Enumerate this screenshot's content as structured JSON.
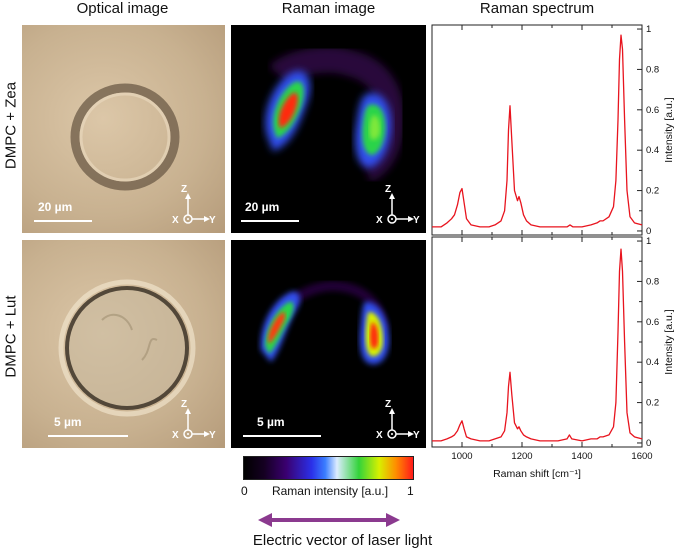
{
  "headers": {
    "optical": "Optical image",
    "raman": "Raman image",
    "spectrum": "Raman spectrum"
  },
  "rows": [
    {
      "label": "DMPC + Zea",
      "optical_scale": "20 µm",
      "raman_scale": "20 µm"
    },
    {
      "label": "DMPC + Lut",
      "optical_scale": "5 µm",
      "raman_scale": "5 µm"
    }
  ],
  "axis_glyphs": {
    "z": "Z",
    "x": "X",
    "y": "Y"
  },
  "colorbar": {
    "min": "0",
    "max": "1",
    "label": "Raman intensity [a.u.]"
  },
  "footer": {
    "label": "Electric vector of laser light"
  },
  "colors": {
    "spectrum_line": "#e8141e",
    "arrow": "#8b3a8f"
  },
  "chart_data": [
    {
      "type": "line",
      "title": "Raman spectrum",
      "xlabel": "Raman shift [cm⁻¹]",
      "ylabel": "Intensity [a.u.]",
      "xlim": [
        900,
        1600
      ],
      "ylim": [
        -0.02,
        1.02
      ],
      "x_ticks": [
        "1000",
        "1200",
        "1400",
        "1600"
      ],
      "y_ticks": [
        "0",
        "0.2",
        "0.4",
        "0.6",
        "0.8",
        "1"
      ],
      "series": [
        {
          "x": [
            900,
            930,
            950,
            965,
            975,
            985,
            993,
            1000,
            1007,
            1015,
            1030,
            1060,
            1090,
            1110,
            1130,
            1142,
            1150,
            1155,
            1160,
            1166,
            1175,
            1185,
            1190,
            1196,
            1205,
            1215,
            1230,
            1260,
            1290,
            1320,
            1350,
            1360,
            1370,
            1400,
            1430,
            1450,
            1460,
            1470,
            1490,
            1505,
            1513,
            1520,
            1525,
            1530,
            1535,
            1542,
            1550,
            1560,
            1575,
            1600
          ],
          "y": [
            0.02,
            0.02,
            0.04,
            0.06,
            0.08,
            0.13,
            0.19,
            0.21,
            0.14,
            0.06,
            0.03,
            0.02,
            0.02,
            0.03,
            0.05,
            0.1,
            0.25,
            0.5,
            0.62,
            0.45,
            0.2,
            0.15,
            0.17,
            0.14,
            0.08,
            0.05,
            0.03,
            0.02,
            0.02,
            0.02,
            0.02,
            0.03,
            0.02,
            0.02,
            0.03,
            0.04,
            0.05,
            0.05,
            0.07,
            0.12,
            0.25,
            0.55,
            0.85,
            0.97,
            0.9,
            0.55,
            0.2,
            0.07,
            0.04,
            0.03
          ]
        }
      ]
    },
    {
      "type": "line",
      "xlabel": "Raman shift [cm⁻¹]",
      "ylabel": "Intensity [a.u.]",
      "xlim": [
        900,
        1600
      ],
      "ylim": [
        -0.02,
        1.02
      ],
      "x_ticks": [
        "1000",
        "1200",
        "1400",
        "1600"
      ],
      "y_ticks": [
        "0",
        "0.2",
        "0.4",
        "0.6",
        "0.8",
        "1"
      ],
      "series": [
        {
          "x": [
            900,
            930,
            950,
            965,
            975,
            985,
            993,
            1000,
            1007,
            1015,
            1030,
            1060,
            1090,
            1110,
            1130,
            1142,
            1150,
            1155,
            1160,
            1166,
            1175,
            1185,
            1190,
            1196,
            1205,
            1215,
            1230,
            1260,
            1290,
            1320,
            1350,
            1358,
            1366,
            1400,
            1430,
            1450,
            1460,
            1470,
            1490,
            1505,
            1513,
            1520,
            1525,
            1530,
            1535,
            1542,
            1550,
            1560,
            1575,
            1600
          ],
          "y": [
            0.01,
            0.01,
            0.02,
            0.03,
            0.04,
            0.06,
            0.09,
            0.11,
            0.07,
            0.03,
            0.02,
            0.01,
            0.01,
            0.02,
            0.03,
            0.06,
            0.15,
            0.28,
            0.35,
            0.24,
            0.1,
            0.07,
            0.08,
            0.06,
            0.04,
            0.03,
            0.02,
            0.01,
            0.01,
            0.01,
            0.02,
            0.04,
            0.02,
            0.01,
            0.02,
            0.02,
            0.03,
            0.03,
            0.04,
            0.08,
            0.2,
            0.55,
            0.85,
            0.96,
            0.85,
            0.5,
            0.15,
            0.05,
            0.03,
            0.02
          ]
        }
      ]
    }
  ]
}
